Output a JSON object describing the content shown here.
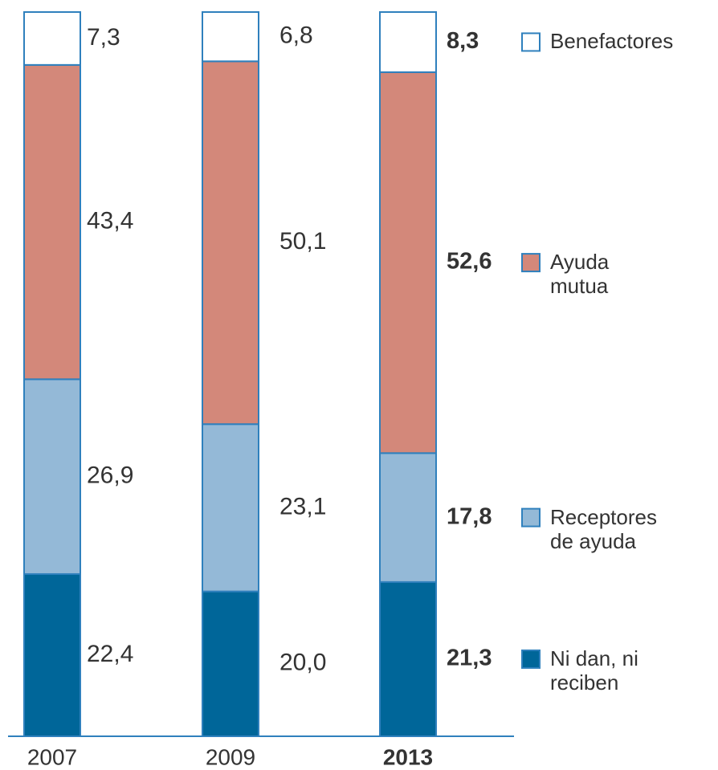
{
  "chart_data": {
    "type": "stacked_bar",
    "categories": [
      "2007",
      "2009",
      "2013"
    ],
    "series": [
      {
        "name": "Ni dan, ni reciben",
        "color": "#006699",
        "values": [
          22.4,
          20.0,
          21.3
        ],
        "value_labels": [
          "22,4",
          "20,0",
          "21,3"
        ]
      },
      {
        "name": "Receptores de ayuda",
        "color": "#94b9d7",
        "values": [
          26.9,
          23.1,
          17.8
        ],
        "value_labels": [
          "26,9",
          "23,1",
          "17,8"
        ]
      },
      {
        "name": "Ayuda mutua",
        "color": "#d3887a",
        "values": [
          43.4,
          50.1,
          52.6
        ],
        "value_labels": [
          "43,4",
          "50,1",
          "52,6"
        ]
      },
      {
        "name": "Benefactores",
        "color": "#ffffff",
        "values": [
          7.3,
          6.8,
          8.3
        ],
        "value_labels": [
          "7,3",
          "6,8",
          "8,3"
        ]
      }
    ],
    "edge_color": "#2f80bd",
    "ylim": [
      0,
      100
    ],
    "highlight_index": 2,
    "legend": "right"
  }
}
